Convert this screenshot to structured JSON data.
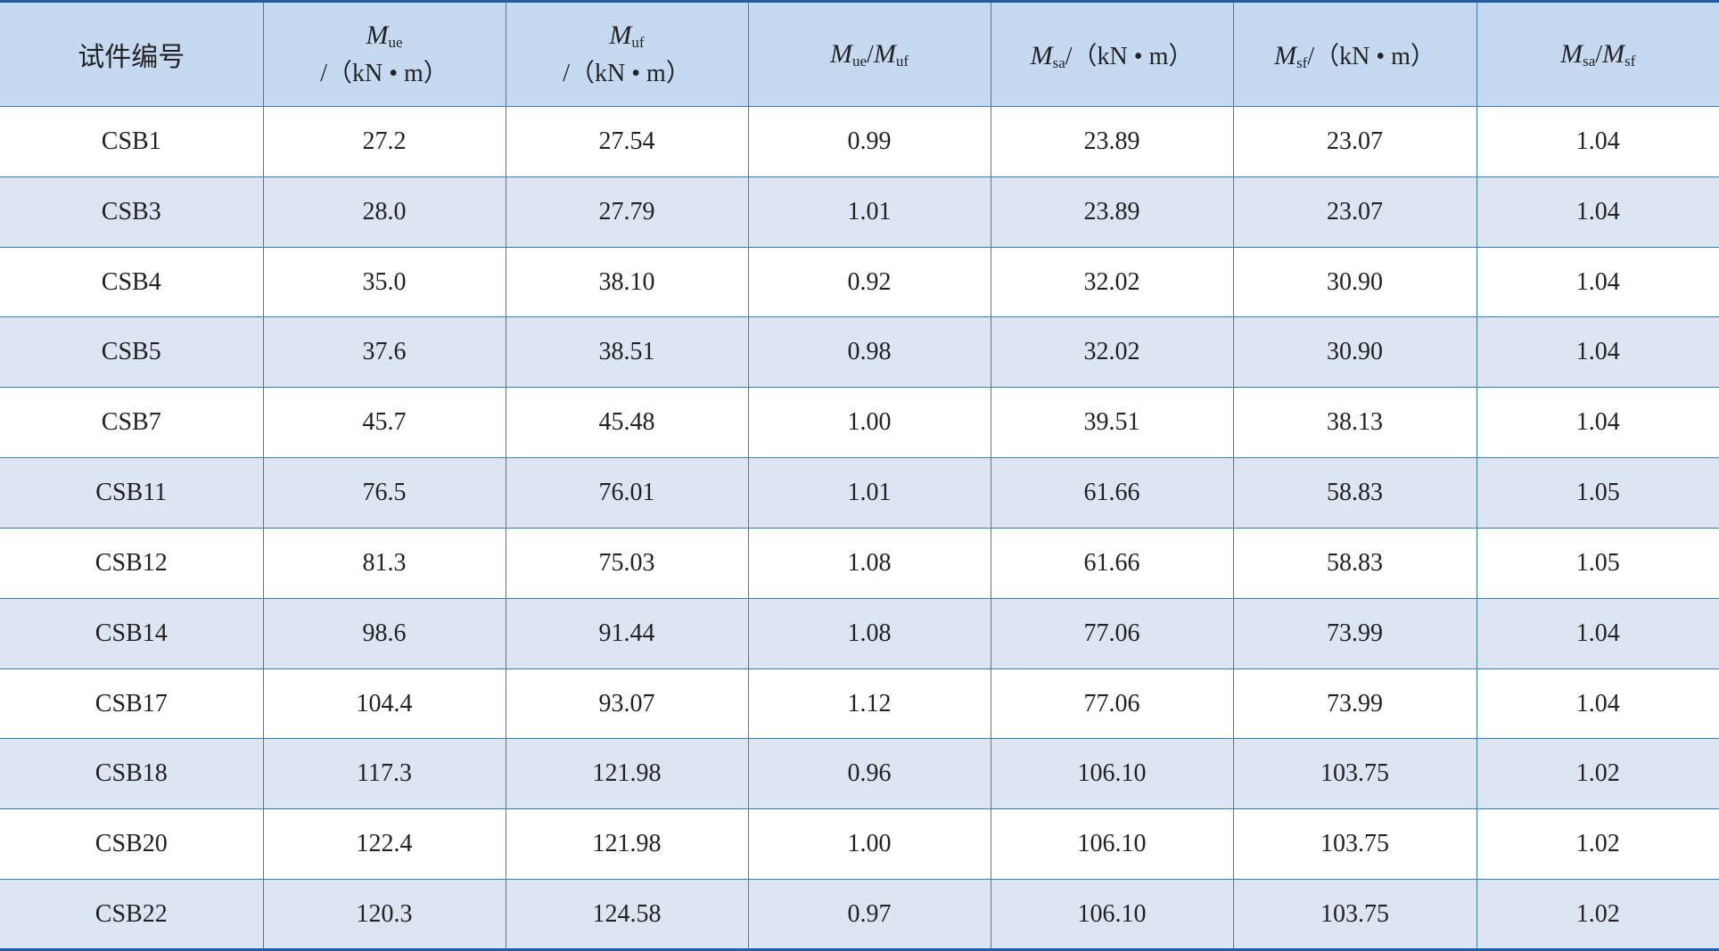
{
  "table": {
    "header": [
      {
        "text": "试件编号"
      },
      {
        "symbol": "M",
        "sub": "ue",
        "unit": "/（kN • m）"
      },
      {
        "symbol": "M",
        "sub": "uf",
        "unit": "/（kN • m）"
      },
      {
        "symbol": "M",
        "sub": "ue",
        "slash": "/",
        "symbol2": "M",
        "sub2": "uf"
      },
      {
        "symbol": "M",
        "sub": "sa",
        "unit": "/（kN • m）"
      },
      {
        "symbol": "M",
        "sub": "sf",
        "unit": "/（kN • m）"
      },
      {
        "symbol": "M",
        "sub": "sa",
        "slash": "/",
        "symbol2": "M",
        "sub2": "sf"
      }
    ],
    "rows": [
      [
        "CSB1",
        "27.2",
        "27.54",
        "0.99",
        "23.89",
        "23.07",
        "1.04"
      ],
      [
        "CSB3",
        "28.0",
        "27.79",
        "1.01",
        "23.89",
        "23.07",
        "1.04"
      ],
      [
        "CSB4",
        "35.0",
        "38.10",
        "0.92",
        "32.02",
        "30.90",
        "1.04"
      ],
      [
        "CSB5",
        "37.6",
        "38.51",
        "0.98",
        "32.02",
        "30.90",
        "1.04"
      ],
      [
        "CSB7",
        "45.7",
        "45.48",
        "1.00",
        "39.51",
        "38.13",
        "1.04"
      ],
      [
        "CSB11",
        "76.5",
        "76.01",
        "1.01",
        "61.66",
        "58.83",
        "1.05"
      ],
      [
        "CSB12",
        "81.3",
        "75.03",
        "1.08",
        "61.66",
        "58.83",
        "1.05"
      ],
      [
        "CSB14",
        "98.6",
        "91.44",
        "1.08",
        "77.06",
        "73.99",
        "1.04"
      ],
      [
        "CSB17",
        "104.4",
        "93.07",
        "1.12",
        "77.06",
        "73.99",
        "1.04"
      ],
      [
        "CSB18",
        "117.3",
        "121.98",
        "0.96",
        "106.10",
        "103.75",
        "1.02"
      ],
      [
        "CSB20",
        "122.4",
        "121.98",
        "1.00",
        "106.10",
        "103.75",
        "1.02"
      ],
      [
        "CSB22",
        "120.3",
        "124.58",
        "0.97",
        "106.10",
        "103.75",
        "1.02"
      ]
    ]
  }
}
